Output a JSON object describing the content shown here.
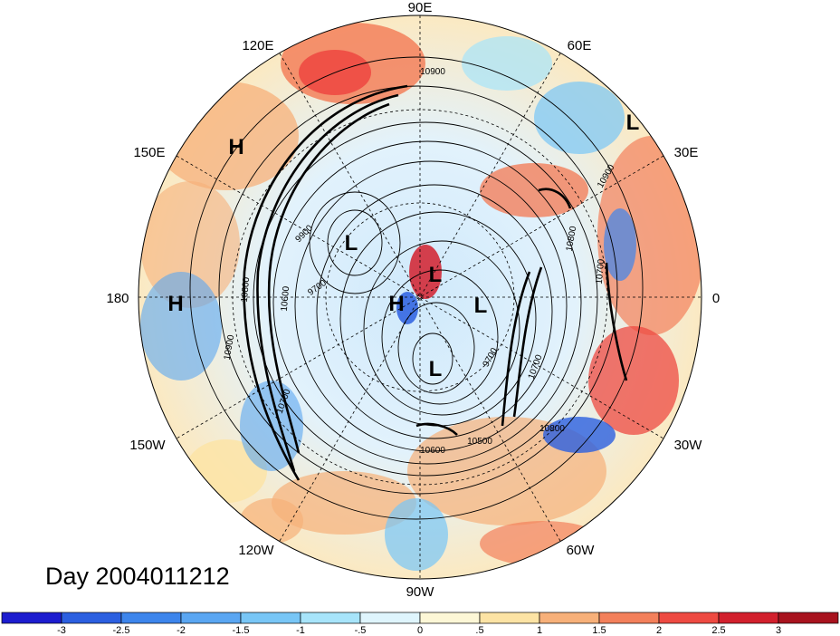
{
  "title": "Day 2004011212",
  "longitude_labels": {
    "top": "90E",
    "upper_left": "120E",
    "upper_right": "60E",
    "mid_left_upper": "150E",
    "mid_right_upper": "30E",
    "left": "180",
    "right": "0",
    "mid_left_lower": "150W",
    "mid_right_lower": "30W",
    "lower_left": "120W",
    "lower_right": "60W",
    "bottom": "90W"
  },
  "pressure_centers": [
    {
      "kind": "H"
    },
    {
      "kind": "H"
    },
    {
      "kind": "H"
    },
    {
      "kind": "L"
    },
    {
      "kind": "L"
    },
    {
      "kind": "L"
    },
    {
      "kind": "L"
    },
    {
      "kind": "L"
    }
  ],
  "contour_labels": [
    "10900",
    "10900",
    "10800",
    "10800",
    "10700",
    "10700",
    "10600",
    "10500",
    "9900",
    "9700",
    "9700",
    "10900",
    "10800",
    "10700",
    "10600"
  ],
  "colorbar": {
    "colors": [
      "#1c1ccf",
      "#2b5fe0",
      "#3d85ec",
      "#5aa6f2",
      "#78c6f6",
      "#a7e4fa",
      "#dff5fd",
      "#fdf7d6",
      "#fce3a4",
      "#f7b079",
      "#f3805b",
      "#ee4a42",
      "#d2202d",
      "#a8131e"
    ],
    "tick_labels": [
      "-3",
      "-2.5",
      "-2",
      "-1.5",
      "-1",
      "-.5",
      "0",
      ".5",
      "1",
      "1.5",
      "2",
      "2.5",
      "3"
    ]
  }
}
